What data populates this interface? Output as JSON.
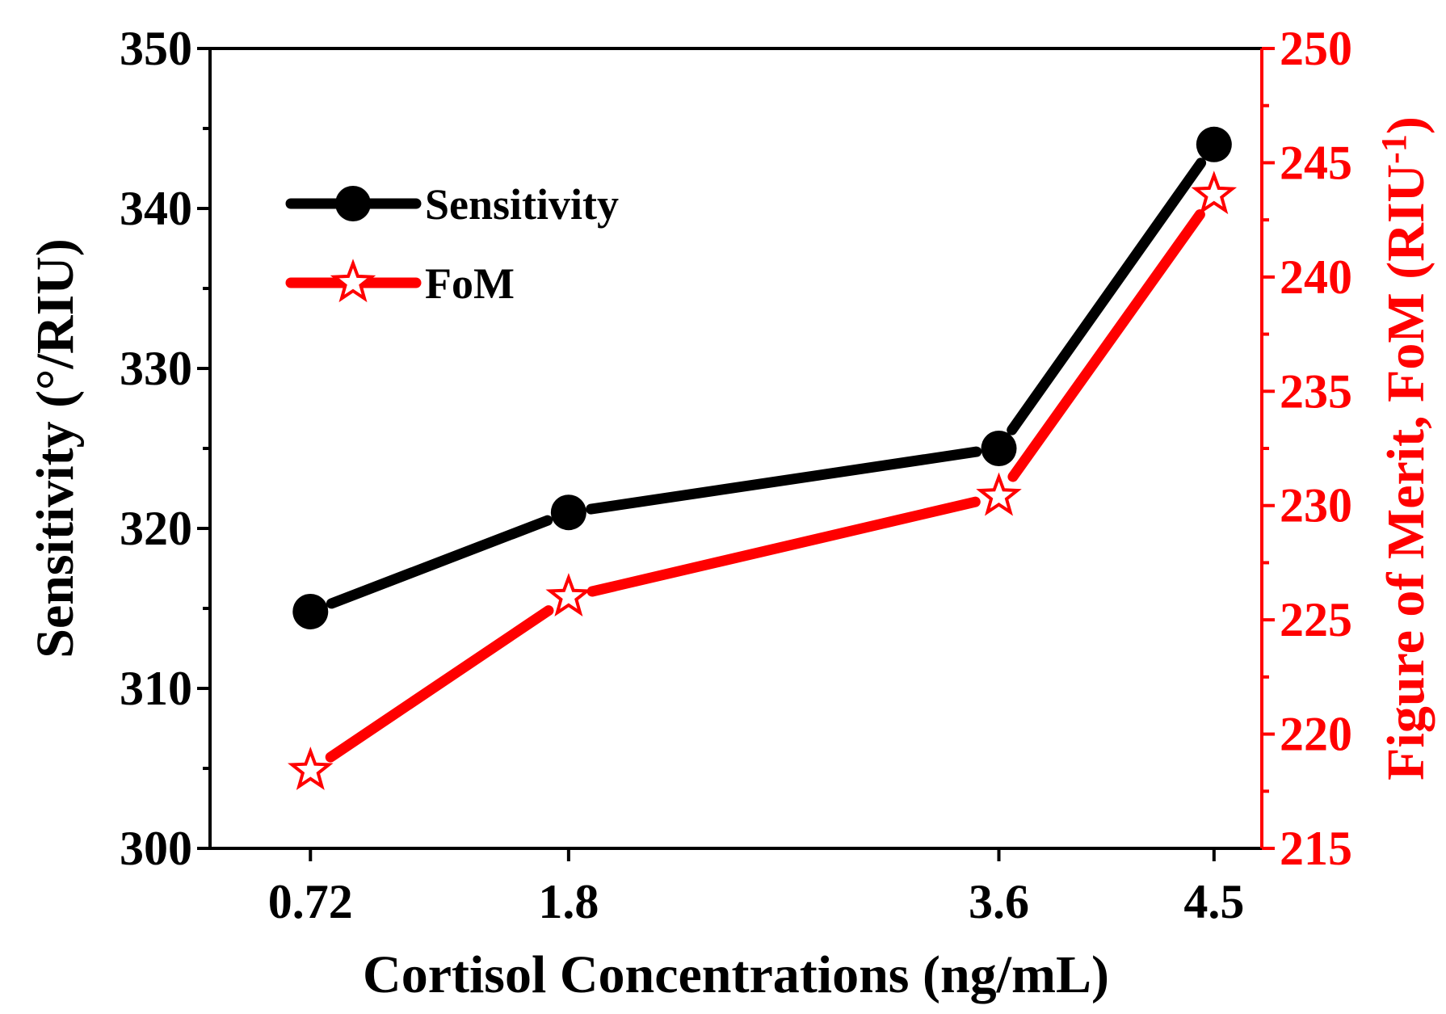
{
  "chart_data": {
    "type": "line",
    "categories": [
      "0.72",
      "1.8",
      "3.6",
      "4.5"
    ],
    "x": [
      0.72,
      1.8,
      3.6,
      4.5
    ],
    "xlabel": "Cortisol Concentrations (ng/mL)",
    "xlim": [
      0.3,
      4.7
    ],
    "y_left": {
      "label": "Sensitivity (°/RIU)",
      "ylim": [
        300,
        350
      ],
      "ticks": [
        "300",
        "310",
        "320",
        "330",
        "340",
        "350"
      ]
    },
    "y_right": {
      "label_main": "Figure of Merit, FoM (RIU",
      "label_sup": "-1",
      "label_close": ")",
      "ylim": [
        215,
        250
      ],
      "ticks": [
        "215",
        "220",
        "225",
        "230",
        "235",
        "240",
        "245",
        "250"
      ]
    },
    "series": [
      {
        "name": "Sensitivity",
        "axis": "left",
        "marker": "circle",
        "color": "#000000",
        "values": [
          314.8,
          321,
          325,
          344
        ]
      },
      {
        "name": "FoM",
        "axis": "right",
        "marker": "star",
        "color": "#ff0000",
        "values": [
          218.4,
          226,
          230.4,
          243.6
        ]
      }
    ],
    "legend_position": "top-left",
    "grid": false
  }
}
